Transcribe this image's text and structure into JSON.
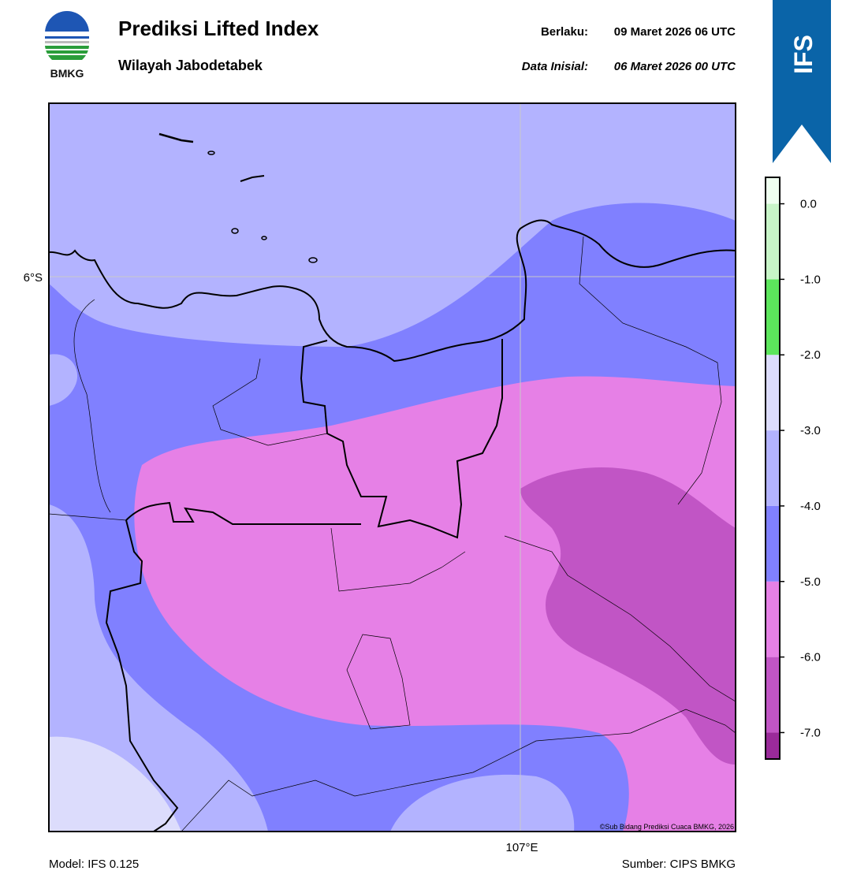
{
  "header": {
    "title": "Prediksi Lifted Index",
    "subtitle": "Wilayah Jabodetabek",
    "valid_label": "Berlaku:",
    "valid_time": "09 Maret 2026 06 UTC",
    "init_label": "Data Inisial:",
    "init_time": "06 Maret 2026 00 UTC"
  },
  "logo": {
    "text": "BMKG"
  },
  "tab": {
    "text": "IFS"
  },
  "map": {
    "lat_label": "6°S",
    "lon_label": "107°E",
    "credit": "©Sub Bidang Prediksi Cuaca BMKG, 2026"
  },
  "colorbar": {
    "range": [
      -7.35,
      0.35
    ],
    "ticks": [
      {
        "value": 0,
        "label": "0.0"
      },
      {
        "value": -1,
        "label": "-1.0"
      },
      {
        "value": -2,
        "label": "-2.0"
      },
      {
        "value": -3,
        "label": "-3.0"
      },
      {
        "value": -4,
        "label": "-4.0"
      },
      {
        "value": -5,
        "label": "-5.0"
      },
      {
        "value": -6,
        "label": "-6.0"
      },
      {
        "value": -7,
        "label": "-7.0"
      }
    ],
    "bounds": [
      -7,
      -6,
      -5,
      -4,
      -3,
      -2,
      -1,
      0
    ],
    "colors": [
      "#9a2a9a",
      "#c155c5",
      "#e680e6",
      "#8080ff",
      "#b3b3ff",
      "#dcdcfc",
      "#5ce65c",
      "#c8f5c8",
      "#effff0"
    ]
  },
  "footer": {
    "model": "Model: IFS 0.125",
    "source": "Sumber: CIPS BMKG"
  }
}
